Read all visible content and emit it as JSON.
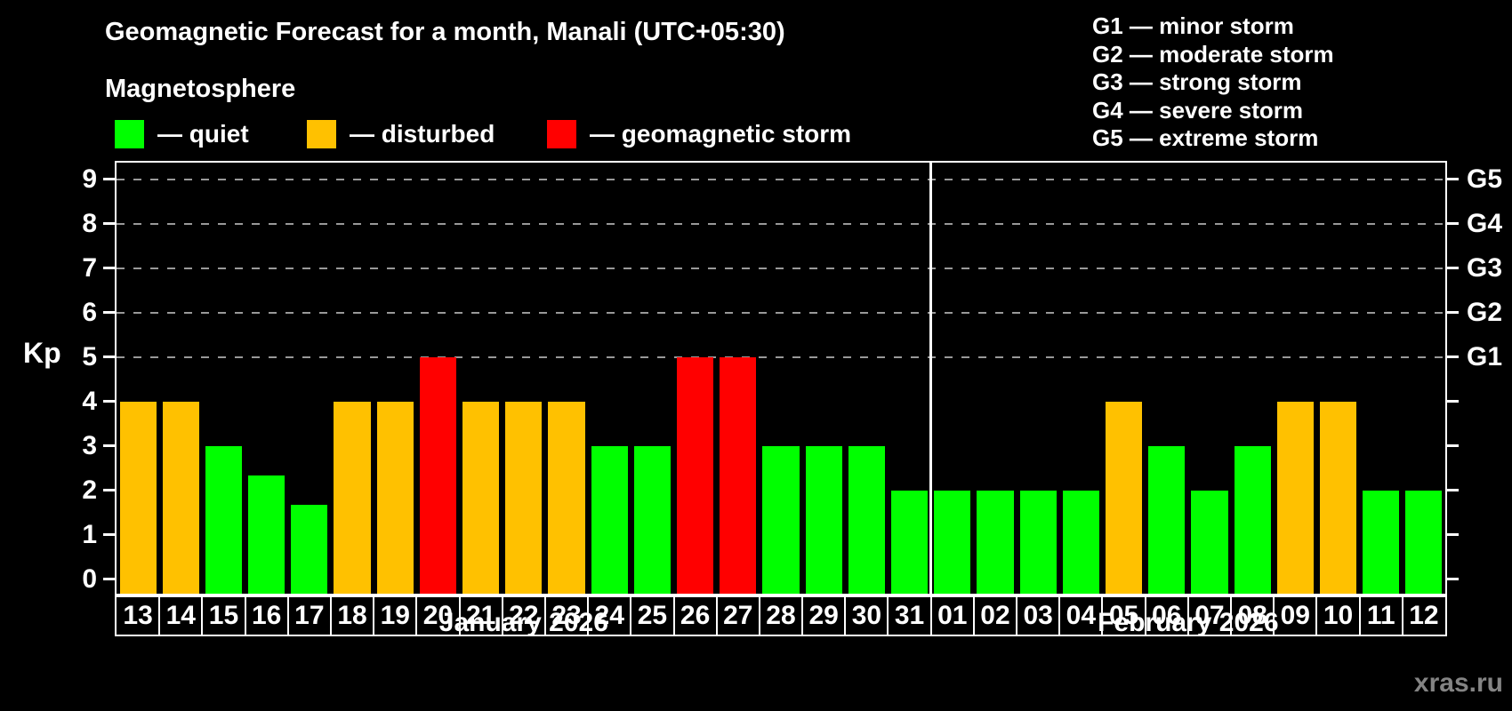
{
  "header": {
    "title": "Geomagnetic Forecast for a month, Manali (UTC+05:30)",
    "subtitle": "Magnetosphere"
  },
  "legend": {
    "items": [
      {
        "name": "quiet",
        "label": "— quiet",
        "color": "#00ff00"
      },
      {
        "name": "disturbed",
        "label": "— disturbed",
        "color": "#ffc100"
      },
      {
        "name": "storm",
        "label": "— geomagnetic storm",
        "color": "#ff0000"
      }
    ]
  },
  "storm_scale": {
    "items": [
      "G1 — minor storm",
      "G2 — moderate storm",
      "G3 — strong storm",
      "G4 — severe storm",
      "G5 — extreme storm"
    ]
  },
  "watermark": "xras.ru",
  "chart_data": {
    "type": "bar",
    "title": "Geomagnetic Forecast for a month, Manali (UTC+05:30)",
    "xlabel": "",
    "ylabel": "Kp",
    "ylim": [
      0,
      9
    ],
    "y_ticks": [
      0,
      1,
      2,
      3,
      4,
      5,
      6,
      7,
      8,
      9
    ],
    "gridlines_at": [
      5,
      6,
      7,
      8,
      9
    ],
    "grid_style": "dashed horizontal, Kp 5-9 only",
    "legend_position": "top-left",
    "right_axis_labels": [
      {
        "label": "G1",
        "kp": 5
      },
      {
        "label": "G2",
        "kp": 6
      },
      {
        "label": "G3",
        "kp": 7
      },
      {
        "label": "G4",
        "kp": 8
      },
      {
        "label": "G5",
        "kp": 9
      }
    ],
    "months": [
      {
        "label": "January 2026",
        "start_index": 0,
        "days": 19
      },
      {
        "label": "February 2026",
        "start_index": 19,
        "days": 12
      }
    ],
    "categories": [
      "13",
      "14",
      "15",
      "16",
      "17",
      "18",
      "19",
      "20",
      "21",
      "22",
      "23",
      "24",
      "25",
      "26",
      "27",
      "28",
      "29",
      "30",
      "31",
      "01",
      "02",
      "03",
      "04",
      "05",
      "06",
      "07",
      "08",
      "09",
      "10",
      "11",
      "12"
    ],
    "values": [
      4,
      4,
      3,
      2.33,
      1.67,
      4,
      4,
      5,
      4,
      4,
      4,
      3,
      3,
      5,
      5,
      3,
      3,
      3,
      2,
      2,
      2,
      2,
      2,
      4,
      3,
      2,
      3,
      4,
      4,
      2,
      2
    ],
    "statuses": [
      "disturbed",
      "disturbed",
      "quiet",
      "quiet",
      "quiet",
      "disturbed",
      "disturbed",
      "storm",
      "disturbed",
      "disturbed",
      "disturbed",
      "quiet",
      "quiet",
      "storm",
      "storm",
      "quiet",
      "quiet",
      "quiet",
      "quiet",
      "quiet",
      "quiet",
      "quiet",
      "quiet",
      "disturbed",
      "quiet",
      "quiet",
      "quiet",
      "disturbed",
      "disturbed",
      "quiet",
      "quiet"
    ],
    "colors": {
      "quiet": "#00ff00",
      "disturbed": "#ffc100",
      "storm": "#ff0000"
    }
  }
}
